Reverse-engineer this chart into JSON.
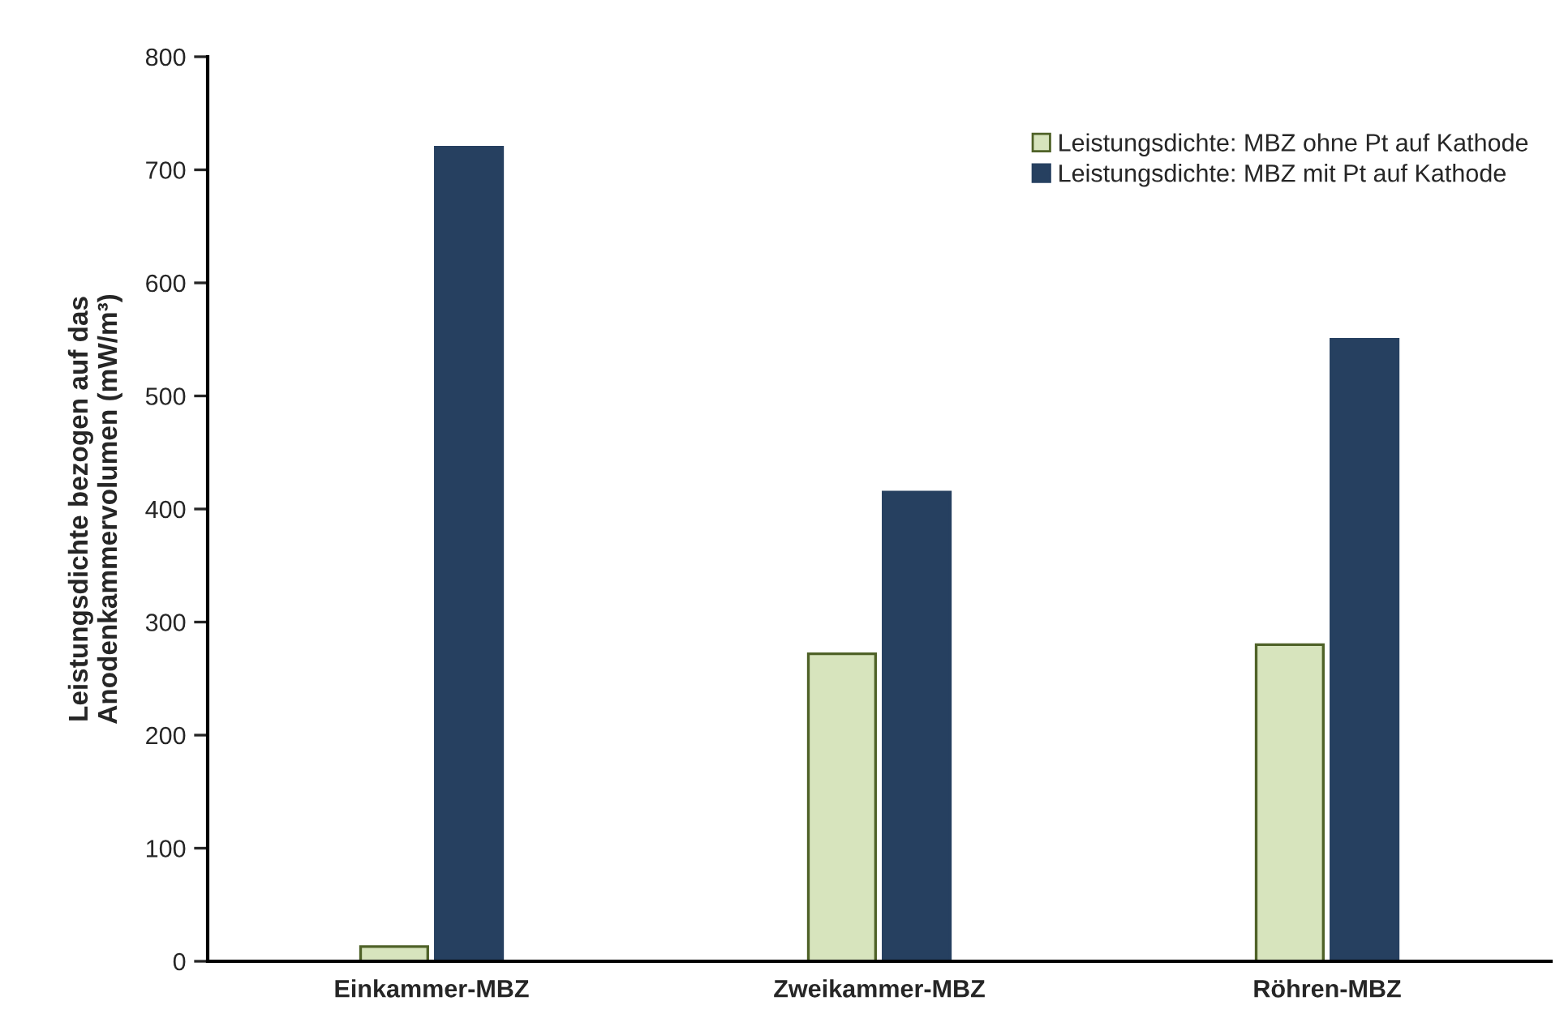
{
  "chart_data": {
    "type": "bar",
    "ylabel": "Leistungsdichte bezogen auf das\nAnodenkammervolumen (mW/m³)",
    "categories": [
      "Einkammer-MBZ",
      "Zweikammer-MBZ",
      "Röhren-MBZ"
    ],
    "series": [
      {
        "name": "Leistungsdichte: MBZ ohne Pt auf Kathode",
        "color": "#d7e4bd",
        "values": [
          13,
          272,
          280
        ]
      },
      {
        "name": "Leistungsdichte: MBZ mit Pt auf Kathode",
        "color": "#264060",
        "values": [
          720,
          415,
          550
        ]
      }
    ],
    "ylim": [
      0,
      800
    ],
    "yticks": [
      0,
      100,
      200,
      300,
      400,
      500,
      600,
      700,
      800
    ],
    "grid": false,
    "legend": "top right"
  }
}
